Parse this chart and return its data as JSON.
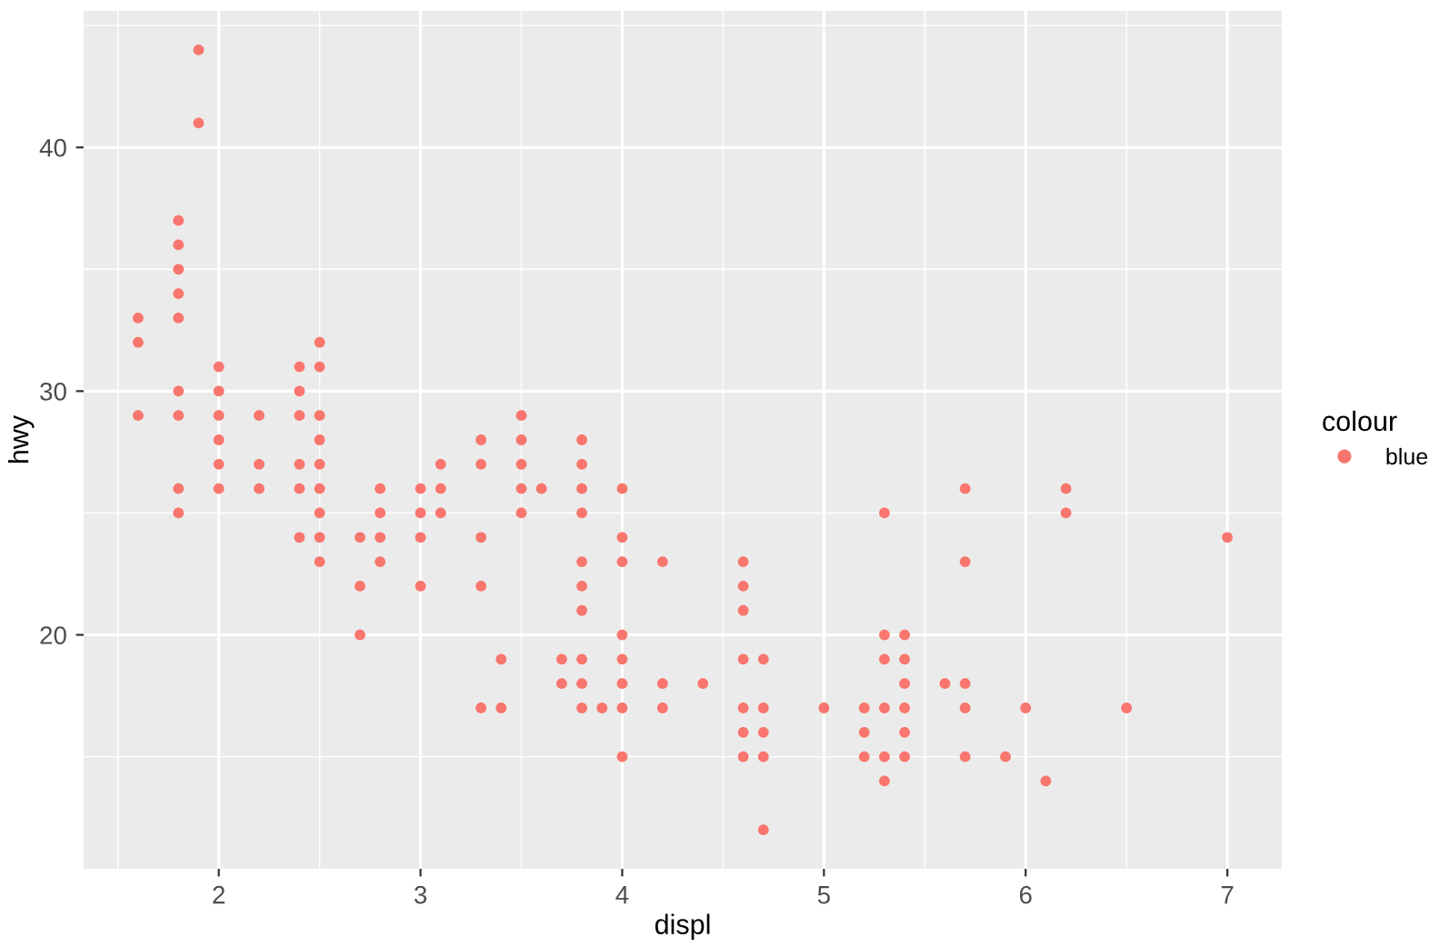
{
  "chart_data": {
    "type": "scatter",
    "xlabel": "displ",
    "ylabel": "hwy",
    "legend_title": "colour",
    "xlim": [
      1.33,
      7.27
    ],
    "ylim": [
      10.4,
      45.6
    ],
    "xticks": [
      2,
      3,
      4,
      5,
      6,
      7
    ],
    "yticks": [
      20,
      30,
      40
    ],
    "grid": true,
    "legend": "right",
    "marker": "circle",
    "series": [
      {
        "name": "blue",
        "color": "#f8766d",
        "x": [
          1.6,
          1.6,
          1.6,
          1.8,
          1.8,
          1.8,
          1.8,
          1.8,
          1.8,
          1.8,
          1.8,
          1.8,
          1.9,
          1.9,
          2.0,
          2.0,
          2.0,
          2.0,
          2.0,
          2.0,
          2.2,
          2.2,
          2.2,
          2.4,
          2.4,
          2.4,
          2.4,
          2.4,
          2.4,
          2.5,
          2.5,
          2.5,
          2.5,
          2.5,
          2.5,
          2.5,
          2.5,
          2.5,
          2.7,
          2.7,
          2.7,
          2.8,
          2.8,
          2.8,
          2.8,
          3.0,
          3.0,
          3.0,
          3.0,
          3.1,
          3.1,
          3.1,
          3.3,
          3.3,
          3.3,
          3.3,
          3.3,
          3.4,
          3.4,
          3.5,
          3.5,
          3.5,
          3.5,
          3.5,
          3.6,
          3.7,
          3.7,
          3.8,
          3.8,
          3.8,
          3.8,
          3.8,
          3.8,
          3.8,
          3.8,
          3.8,
          3.8,
          3.9,
          4.0,
          4.0,
          4.0,
          4.0,
          4.0,
          4.0,
          4.0,
          4.0,
          4.2,
          4.2,
          4.2,
          4.4,
          4.6,
          4.6,
          4.6,
          4.6,
          4.6,
          4.6,
          4.6,
          4.7,
          4.7,
          4.7,
          4.7,
          4.7,
          5.0,
          5.2,
          5.2,
          5.2,
          5.3,
          5.3,
          5.3,
          5.3,
          5.3,
          5.3,
          5.4,
          5.4,
          5.4,
          5.4,
          5.4,
          5.4,
          5.6,
          5.7,
          5.7,
          5.7,
          5.7,
          5.7,
          5.9,
          6.0,
          6.1,
          6.2,
          6.2,
          6.5,
          7.0
        ],
        "values": [
          29,
          32,
          33,
          25,
          26,
          29,
          30,
          33,
          34,
          35,
          36,
          37,
          41,
          44,
          26,
          27,
          28,
          29,
          30,
          31,
          26,
          27,
          29,
          24,
          26,
          27,
          29,
          30,
          31,
          23,
          24,
          25,
          26,
          27,
          28,
          29,
          31,
          32,
          20,
          22,
          24,
          23,
          24,
          25,
          26,
          22,
          24,
          25,
          26,
          25,
          26,
          27,
          17,
          22,
          24,
          27,
          28,
          17,
          19,
          25,
          26,
          27,
          28,
          29,
          26,
          18,
          19,
          17,
          18,
          19,
          21,
          22,
          23,
          25,
          26,
          27,
          28,
          17,
          15,
          17,
          18,
          19,
          20,
          23,
          24,
          26,
          17,
          18,
          23,
          18,
          15,
          16,
          17,
          19,
          21,
          22,
          23,
          12,
          15,
          16,
          17,
          19,
          17,
          15,
          16,
          17,
          14,
          15,
          17,
          19,
          20,
          25,
          15,
          16,
          17,
          18,
          19,
          20,
          18,
          15,
          17,
          18,
          23,
          26,
          15,
          17,
          14,
          25,
          26,
          17,
          24
        ]
      }
    ]
  }
}
